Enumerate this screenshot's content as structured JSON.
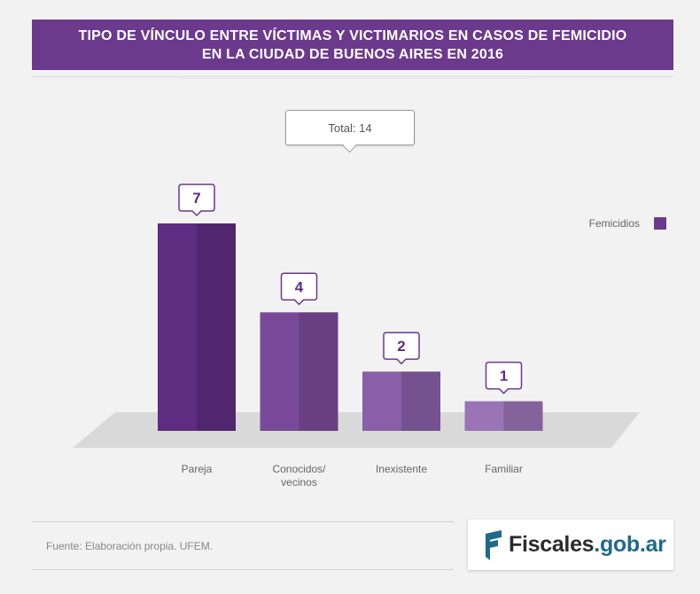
{
  "header": {
    "title_line1": "TIPO DE VÍNCULO ENTRE VÍCTIMAS Y VICTIMARIOS EN CASOS DE FEMICIDIO",
    "title_line2": "EN LA CIUDAD DE BUENOS AIRES EN 2016"
  },
  "total": {
    "label": "Total: 14"
  },
  "chart_data": {
    "type": "bar",
    "title": "TIPO DE VÍNCULO ENTRE VÍCTIMAS Y VICTIMARIOS EN CASOS DE FEMICIDIO EN LA CIUDAD DE BUENOS AIRES EN 2016",
    "categories": [
      "Pareja",
      "Conocidos/\nvecinos",
      "Inexistente",
      "Familiar"
    ],
    "series": [
      {
        "name": "Femicidios",
        "values": [
          7,
          4,
          2,
          1
        ]
      }
    ],
    "data_labels": [
      "7",
      "4",
      "2",
      "1"
    ],
    "ylim": [
      0,
      7
    ],
    "grid": false,
    "legend_position": "right",
    "colors": [
      "#5e2d82",
      "#7a4a9a",
      "#8a5fa8",
      "#9b74b6"
    ]
  },
  "legend": {
    "label": "Femicidios",
    "color": "#6b3a8c"
  },
  "footer": {
    "source": "Fuente: Elaboración propia. UFEM.",
    "logo_main": "Fiscales",
    "logo_suffix": ".gob.ar"
  }
}
